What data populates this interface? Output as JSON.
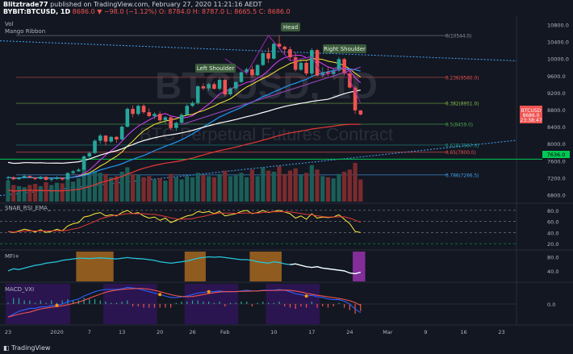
{
  "header": {
    "publisher": "Blitztrade77",
    "published_text": "published on TradingView.com, February 27, 2020 11:21:16 AEDT",
    "symbol": "BYBIT:BTCUSD, 1D",
    "change": "8686.0 ▼ −98.0 (−1.12%)",
    "ohlc": "O: 8784.0  H: 8787.0  L: 8665.5  C: 8686.0"
  },
  "indicators": {
    "vol": "Vol",
    "ribbon": "Mango Ribbon"
  },
  "watermark": {
    "symbol": "BTCUSD, 1D",
    "name": "BTC Perpetual Futures Contract"
  },
  "annotations": {
    "head": "Head",
    "left_shoulder": "Left Shoulder",
    "right_shoulder": "Right Shoulder"
  },
  "price_label": {
    "symbol": "BTCUSD",
    "price": "8686.0",
    "countdown": "23:38:47"
  },
  "green_level": "7636.0",
  "fib_levels": [
    {
      "label": "0(10544.0)",
      "value": 10544,
      "color": "#9598a1"
    },
    {
      "label": "0.236(9560.0)",
      "value": 9560,
      "color": "#ef5350"
    },
    {
      "label": "0.382(8951.0)",
      "value": 8951,
      "color": "#8bc34a"
    },
    {
      "label": "0.5(8459.0)",
      "value": 8459,
      "color": "#4caf50"
    },
    {
      "label": "0.618(7967.0)",
      "value": 7967,
      "color": "#26a69a"
    },
    {
      "label": "0.65(7800.0)",
      "value": 7800,
      "color": "#ef5350"
    },
    {
      "label": "0.786(7266.5)",
      "value": 7266.5,
      "color": "#42a5f5"
    }
  ],
  "sub_labels": {
    "rsi": "SNAB_RSI_EMA_",
    "mfi": "MFI+",
    "macd": "MACD_VXI"
  },
  "logo": "TradingView",
  "chart_data": {
    "type": "candlestick",
    "x_ticks": [
      "23",
      "2020",
      "7",
      "13",
      "20",
      "26",
      "Feb",
      "10",
      "17",
      "24",
      "Mar",
      "9",
      "16",
      "23"
    ],
    "price_axis": [
      "10800.0",
      "10400.0",
      "10000.0",
      "9600.0",
      "9200.0",
      "8800.0",
      "8400.0",
      "8000.0",
      "7600.0",
      "7200.0",
      "6800.0"
    ],
    "price_range": [
      6600,
      11000
    ],
    "rsi_axis": [
      "80.0",
      "60.0",
      "40.0",
      "20.0"
    ],
    "rsi_range": [
      10,
      90
    ],
    "mfi_axis": [
      "80.0",
      "40.0"
    ],
    "mfi_range": [
      10,
      95
    ],
    "macd_axis": [
      "0.0"
    ],
    "candles": [
      [
        7190,
        7240,
        7120,
        7210
      ],
      [
        7210,
        7230,
        7140,
        7165
      ],
      [
        7165,
        7220,
        7150,
        7200
      ],
      [
        7200,
        7260,
        7180,
        7240
      ],
      [
        7240,
        7250,
        7190,
        7205
      ],
      [
        7205,
        7210,
        7140,
        7170
      ],
      [
        7170,
        7240,
        7160,
        7220
      ],
      [
        7220,
        7230,
        7130,
        7150
      ],
      [
        7150,
        7190,
        7110,
        7170
      ],
      [
        7170,
        7240,
        7150,
        7200
      ],
      [
        7200,
        7210,
        7130,
        7160
      ],
      [
        7160,
        7330,
        7150,
        7310
      ],
      [
        7310,
        7380,
        7280,
        7350
      ],
      [
        7350,
        7430,
        7340,
        7390
      ],
      [
        7390,
        7730,
        7370,
        7700
      ],
      [
        7700,
        7810,
        7660,
        7780
      ],
      [
        7780,
        8100,
        7760,
        8070
      ],
      [
        8070,
        8230,
        8000,
        8190
      ],
      [
        8190,
        8200,
        7960,
        8050
      ],
      [
        8050,
        8180,
        8020,
        8160
      ],
      [
        8160,
        8180,
        8020,
        8100
      ],
      [
        8100,
        8430,
        8080,
        8400
      ],
      [
        8400,
        8850,
        8380,
        8820
      ],
      [
        8820,
        8900,
        8620,
        8700
      ],
      [
        8700,
        8920,
        8660,
        8890
      ],
      [
        8890,
        8930,
        8700,
        8740
      ],
      [
        8740,
        8830,
        8620,
        8650
      ],
      [
        8650,
        8740,
        8580,
        8700
      ],
      [
        8700,
        8760,
        8500,
        8550
      ],
      [
        8550,
        8650,
        8460,
        8620
      ],
      [
        8620,
        8640,
        8320,
        8370
      ],
      [
        8370,
        8520,
        8300,
        8490
      ],
      [
        8490,
        8720,
        8470,
        8680
      ],
      [
        8680,
        8930,
        8650,
        8890
      ],
      [
        8890,
        9000,
        8860,
        8960
      ],
      [
        8960,
        9380,
        8920,
        9350
      ],
      [
        9350,
        9420,
        9260,
        9300
      ],
      [
        9300,
        9430,
        9240,
        9400
      ],
      [
        9400,
        9450,
        9270,
        9290
      ],
      [
        9290,
        9560,
        9250,
        9500
      ],
      [
        9500,
        9520,
        9110,
        9160
      ],
      [
        9160,
        9330,
        9120,
        9300
      ],
      [
        9300,
        9470,
        9260,
        9450
      ],
      [
        9450,
        9700,
        9430,
        9680
      ],
      [
        9680,
        9790,
        9620,
        9750
      ],
      [
        9750,
        9830,
        9560,
        9610
      ],
      [
        9610,
        9870,
        9580,
        9850
      ],
      [
        9850,
        10160,
        9830,
        10130
      ],
      [
        10130,
        10250,
        9900,
        10000
      ],
      [
        10000,
        10380,
        9980,
        10350
      ],
      [
        10350,
        10544,
        10220,
        10280
      ],
      [
        10280,
        10310,
        10100,
        10220
      ],
      [
        10220,
        10280,
        9950,
        10030
      ],
      [
        10030,
        10150,
        9700,
        9740
      ],
      [
        9740,
        9950,
        9710,
        9900
      ],
      [
        9900,
        9960,
        9600,
        9650
      ],
      [
        9650,
        10250,
        9600,
        10200
      ],
      [
        10200,
        10230,
        9580,
        9600
      ],
      [
        9600,
        9800,
        9560,
        9680
      ],
      [
        9680,
        9790,
        9580,
        9640
      ],
      [
        9640,
        9760,
        9560,
        9720
      ],
      [
        9720,
        10040,
        9690,
        9990
      ],
      [
        9990,
        10020,
        9600,
        9650
      ],
      [
        9650,
        9720,
        9300,
        9320
      ],
      [
        9320,
        9360,
        8700,
        8784
      ],
      [
        8784,
        8787,
        8665.5,
        8686
      ]
    ],
    "volume": [
      38,
      30,
      28,
      26,
      30,
      32,
      28,
      35,
      30,
      34,
      33,
      40,
      36,
      42,
      60,
      48,
      55,
      52,
      50,
      44,
      46,
      54,
      62,
      50,
      48,
      44,
      46,
      40,
      42,
      38,
      50,
      44,
      40,
      46,
      44,
      52,
      48,
      46,
      44,
      50,
      56,
      46,
      48,
      52,
      44,
      58,
      46,
      62,
      56,
      54,
      64,
      50,
      56,
      60,
      48,
      52,
      66,
      58,
      46,
      44,
      42,
      50,
      54,
      58,
      70,
      40
    ],
    "rsi": [
      42,
      40,
      43,
      46,
      44,
      41,
      45,
      40,
      42,
      46,
      43,
      52,
      56,
      58,
      68,
      70,
      74,
      76,
      70,
      72,
      70,
      76,
      80,
      74,
      76,
      70,
      66,
      68,
      62,
      66,
      58,
      62,
      66,
      70,
      72,
      78,
      76,
      78,
      74,
      78,
      70,
      72,
      74,
      78,
      80,
      74,
      76,
      80,
      76,
      78,
      80,
      77,
      74,
      66,
      70,
      64,
      74,
      66,
      68,
      67,
      68,
      72,
      64,
      56,
      42,
      40
    ],
    "mfi": [
      40,
      46,
      44,
      48,
      52,
      56,
      58,
      62,
      64,
      66,
      70,
      72,
      74,
      76,
      76,
      75,
      76,
      77,
      76,
      75,
      74,
      76,
      78,
      76,
      75,
      74,
      72,
      70,
      66,
      64,
      62,
      64,
      66,
      68,
      72,
      76,
      78,
      80,
      79,
      80,
      78,
      76,
      74,
      72,
      72,
      70,
      66,
      64,
      62,
      66,
      64,
      60,
      58,
      60,
      56,
      52,
      50,
      52,
      48,
      46,
      44,
      42,
      40,
      34,
      32,
      36
    ],
    "macd": [
      -0.9,
      -0.7,
      -0.5,
      -0.4,
      -0.3,
      -0.3,
      -0.2,
      -0.2,
      -0.1,
      -0.1,
      0,
      0.15,
      0.25,
      0.35,
      0.55,
      0.7,
      0.85,
      0.95,
      1.0,
      1.0,
      1.0,
      1.05,
      1.15,
      1.1,
      1.05,
      0.95,
      0.85,
      0.75,
      0.65,
      0.55,
      0.45,
      0.45,
      0.5,
      0.55,
      0.65,
      0.75,
      0.8,
      0.85,
      0.85,
      0.9,
      0.85,
      0.85,
      0.85,
      0.9,
      0.95,
      0.9,
      0.9,
      0.95,
      0.95,
      0.95,
      1.0,
      0.95,
      0.85,
      0.7,
      0.65,
      0.55,
      0.6,
      0.5,
      0.45,
      0.35,
      0.3,
      0.3,
      0.2,
      0.0,
      -0.35,
      -0.6
    ]
  }
}
